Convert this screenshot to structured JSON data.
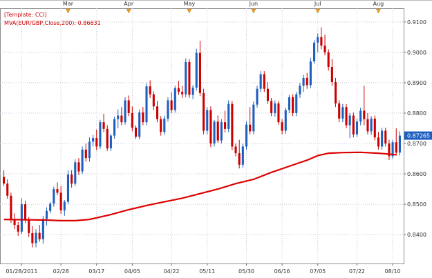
{
  "chart_data": {
    "type": "candlestick",
    "symbol": "EUR/GBP",
    "legend": {
      "template": "[Template: CCI]",
      "indicator": "MVA(EUR/GBP,Close,200): 0.86631"
    },
    "price_tag": "0.87265",
    "ylim": [
      0.8305,
      0.9145
    ],
    "y_ticks": [
      {
        "v": 0.91,
        "label": "0.9100"
      },
      {
        "v": 0.9,
        "label": "0.9000"
      },
      {
        "v": 0.89,
        "label": "0.8900"
      },
      {
        "v": 0.88,
        "label": "0.8800"
      },
      {
        "v": 0.87,
        "label": "0.8700"
      },
      {
        "v": 0.86,
        "label": "0.8600"
      },
      {
        "v": 0.85,
        "label": "0.8500"
      },
      {
        "v": 0.84,
        "label": "0.8400"
      }
    ],
    "x_ticks": [
      {
        "i": 5,
        "label": "01/28/2011"
      },
      {
        "i": 16,
        "label": "02/28"
      },
      {
        "i": 26,
        "label": "03/17"
      },
      {
        "i": 36,
        "label": "04/05"
      },
      {
        "i": 47,
        "label": "04/22"
      },
      {
        "i": 57,
        "label": "05/11"
      },
      {
        "i": 68,
        "label": "05/30"
      },
      {
        "i": 78,
        "label": "06/16"
      },
      {
        "i": 88,
        "label": "07/05"
      },
      {
        "i": 99,
        "label": "07/22"
      },
      {
        "i": 109,
        "label": "08/10"
      }
    ],
    "months": [
      {
        "i": 18,
        "label": "Mar"
      },
      {
        "i": 35,
        "label": "Apr"
      },
      {
        "i": 52,
        "label": "May"
      },
      {
        "i": 70,
        "label": "Jun"
      },
      {
        "i": 88,
        "label": "Jul"
      },
      {
        "i": 105,
        "label": "Aug"
      }
    ],
    "colors": {
      "up": "#1f5fbf",
      "down": "#cc0000",
      "mva": "#dd0000",
      "grid": "#c8c8d8"
    },
    "candles": [
      [
        0.859,
        0.8612,
        0.856,
        0.8568
      ],
      [
        0.8568,
        0.8582,
        0.8518,
        0.8528
      ],
      [
        0.8528,
        0.8538,
        0.8438,
        0.845
      ],
      [
        0.845,
        0.847,
        0.8418,
        0.8432
      ],
      [
        0.8432,
        0.8442,
        0.8396,
        0.841
      ],
      [
        0.841,
        0.852,
        0.8402,
        0.85
      ],
      [
        0.85,
        0.8512,
        0.8438,
        0.8448
      ],
      [
        0.8448,
        0.8458,
        0.8392,
        0.8405
      ],
      [
        0.8405,
        0.8428,
        0.8358,
        0.8372
      ],
      [
        0.8372,
        0.8418,
        0.8358,
        0.8406
      ],
      [
        0.8406,
        0.8432,
        0.8376,
        0.8385
      ],
      [
        0.8385,
        0.8462,
        0.837,
        0.8452
      ],
      [
        0.8452,
        0.849,
        0.843,
        0.8478
      ],
      [
        0.8478,
        0.8508,
        0.847,
        0.8502
      ],
      [
        0.8502,
        0.8558,
        0.8492,
        0.855
      ],
      [
        0.855,
        0.8572,
        0.853,
        0.8538
      ],
      [
        0.8538,
        0.856,
        0.8468,
        0.848
      ],
      [
        0.848,
        0.8514,
        0.8462,
        0.8508
      ],
      [
        0.8508,
        0.8612,
        0.85,
        0.8598
      ],
      [
        0.8598,
        0.8612,
        0.8555,
        0.8568
      ],
      [
        0.8568,
        0.8648,
        0.856,
        0.8638
      ],
      [
        0.8638,
        0.8652,
        0.8596,
        0.8608
      ],
      [
        0.8608,
        0.869,
        0.86,
        0.868
      ],
      [
        0.868,
        0.87,
        0.864,
        0.8652
      ],
      [
        0.8652,
        0.872,
        0.864,
        0.8706
      ],
      [
        0.8706,
        0.8728,
        0.869,
        0.8718
      ],
      [
        0.8718,
        0.8746,
        0.8678,
        0.869
      ],
      [
        0.869,
        0.8778,
        0.8682,
        0.877
      ],
      [
        0.877,
        0.8798,
        0.8738,
        0.8748
      ],
      [
        0.8748,
        0.876,
        0.8676,
        0.8684
      ],
      [
        0.8684,
        0.8732,
        0.8675,
        0.8726
      ],
      [
        0.8726,
        0.8788,
        0.8716,
        0.878
      ],
      [
        0.878,
        0.8812,
        0.875,
        0.8792
      ],
      [
        0.8792,
        0.882,
        0.876,
        0.877
      ],
      [
        0.877,
        0.8852,
        0.8762,
        0.8842
      ],
      [
        0.8842,
        0.8858,
        0.879,
        0.88
      ],
      [
        0.88,
        0.8822,
        0.874,
        0.8752
      ],
      [
        0.8752,
        0.876,
        0.8715,
        0.8722
      ],
      [
        0.8722,
        0.8812,
        0.8714,
        0.8802
      ],
      [
        0.8802,
        0.882,
        0.876,
        0.877
      ],
      [
        0.877,
        0.8898,
        0.876,
        0.8888
      ],
      [
        0.8888,
        0.8908,
        0.885,
        0.8862
      ],
      [
        0.8862,
        0.8872,
        0.881,
        0.8822
      ],
      [
        0.8822,
        0.884,
        0.877,
        0.878
      ],
      [
        0.878,
        0.879,
        0.8726,
        0.8738
      ],
      [
        0.8738,
        0.8792,
        0.8728,
        0.8782
      ],
      [
        0.8782,
        0.8852,
        0.8772,
        0.8842
      ],
      [
        0.8842,
        0.8868,
        0.88,
        0.881
      ],
      [
        0.881,
        0.889,
        0.8802,
        0.8882
      ],
      [
        0.8882,
        0.8906,
        0.886,
        0.887
      ],
      [
        0.887,
        0.889,
        0.885,
        0.8862
      ],
      [
        0.8862,
        0.898,
        0.8852,
        0.8968
      ],
      [
        0.8968,
        0.8978,
        0.885,
        0.886
      ],
      [
        0.886,
        0.8892,
        0.8846,
        0.8884
      ],
      [
        0.8884,
        0.9012,
        0.8874,
        0.8998
      ],
      [
        0.8998,
        0.9038,
        0.8856,
        0.8866
      ],
      [
        0.8866,
        0.888,
        0.873,
        0.8742
      ],
      [
        0.8742,
        0.882,
        0.873,
        0.881
      ],
      [
        0.881,
        0.8822,
        0.8688,
        0.87
      ],
      [
        0.87,
        0.8778,
        0.869,
        0.8772
      ],
      [
        0.8772,
        0.8792,
        0.8702,
        0.871
      ],
      [
        0.871,
        0.878,
        0.87,
        0.877
      ],
      [
        0.877,
        0.8808,
        0.8736,
        0.8748
      ],
      [
        0.8748,
        0.8842,
        0.8738,
        0.883
      ],
      [
        0.883,
        0.884,
        0.8678,
        0.869
      ],
      [
        0.869,
        0.87,
        0.8658,
        0.8668
      ],
      [
        0.8668,
        0.8712,
        0.8618,
        0.863
      ],
      [
        0.863,
        0.87,
        0.862,
        0.869
      ],
      [
        0.869,
        0.8772,
        0.868,
        0.8762
      ],
      [
        0.8762,
        0.882,
        0.873,
        0.874
      ],
      [
        0.874,
        0.8838,
        0.873,
        0.8828
      ],
      [
        0.8828,
        0.889,
        0.8818,
        0.888
      ],
      [
        0.888,
        0.8938,
        0.887,
        0.8928
      ],
      [
        0.8928,
        0.8938,
        0.887,
        0.888
      ],
      [
        0.888,
        0.8902,
        0.883,
        0.884
      ],
      [
        0.884,
        0.885,
        0.879,
        0.88
      ],
      [
        0.88,
        0.8842,
        0.8788,
        0.8832
      ],
      [
        0.8832,
        0.884,
        0.8762,
        0.877
      ],
      [
        0.877,
        0.878,
        0.873,
        0.8742
      ],
      [
        0.8742,
        0.8818,
        0.8732,
        0.881
      ],
      [
        0.881,
        0.886,
        0.88,
        0.8852
      ],
      [
        0.8852,
        0.8862,
        0.879,
        0.88
      ],
      [
        0.88,
        0.887,
        0.879,
        0.8862
      ],
      [
        0.8862,
        0.89,
        0.885,
        0.889
      ],
      [
        0.889,
        0.8926,
        0.887,
        0.8916
      ],
      [
        0.8916,
        0.8932,
        0.888,
        0.8892
      ],
      [
        0.8892,
        0.8982,
        0.8882,
        0.897
      ],
      [
        0.897,
        0.904,
        0.8962,
        0.9032
      ],
      [
        0.9032,
        0.9062,
        0.9,
        0.905
      ],
      [
        0.905,
        0.9082,
        0.901,
        0.9022
      ],
      [
        0.9022,
        0.9058,
        0.899,
        0.9
      ],
      [
        0.9,
        0.901,
        0.894,
        0.8952
      ],
      [
        0.8952,
        0.8978,
        0.889,
        0.8902
      ],
      [
        0.8902,
        0.8916,
        0.882,
        0.8832
      ],
      [
        0.8832,
        0.8842,
        0.877,
        0.8782
      ],
      [
        0.8782,
        0.883,
        0.877,
        0.882
      ],
      [
        0.882,
        0.883,
        0.875,
        0.876
      ],
      [
        0.876,
        0.88,
        0.8718,
        0.8792
      ],
      [
        0.8792,
        0.8802,
        0.872,
        0.873
      ],
      [
        0.873,
        0.8782,
        0.8722,
        0.8772
      ],
      [
        0.8772,
        0.8818,
        0.876,
        0.8808
      ],
      [
        0.8808,
        0.889,
        0.876,
        0.878
      ],
      [
        0.878,
        0.88,
        0.873,
        0.874
      ],
      [
        0.874,
        0.879,
        0.8728,
        0.8782
      ],
      [
        0.8782,
        0.8792,
        0.871,
        0.872
      ],
      [
        0.872,
        0.8738,
        0.868,
        0.869
      ],
      [
        0.869,
        0.8752,
        0.868,
        0.8742
      ],
      [
        0.8742,
        0.8752,
        0.869,
        0.87
      ],
      [
        0.87,
        0.8712,
        0.8646,
        0.8658
      ],
      [
        0.8658,
        0.8712,
        0.865,
        0.8704
      ],
      [
        0.8704,
        0.875,
        0.866,
        0.867
      ],
      [
        0.867,
        0.874,
        0.866,
        0.8726
      ]
    ],
    "mva": [
      [
        0,
        0.845
      ],
      [
        12,
        0.8448
      ],
      [
        16,
        0.8446
      ],
      [
        20,
        0.8446
      ],
      [
        24,
        0.845
      ],
      [
        30,
        0.8466
      ],
      [
        35,
        0.8482
      ],
      [
        40,
        0.8496
      ],
      [
        45,
        0.8508
      ],
      [
        50,
        0.852
      ],
      [
        55,
        0.8535
      ],
      [
        60,
        0.855
      ],
      [
        65,
        0.8568
      ],
      [
        70,
        0.8582
      ],
      [
        75,
        0.8605
      ],
      [
        80,
        0.8625
      ],
      [
        85,
        0.8645
      ],
      [
        88,
        0.866
      ],
      [
        91,
        0.8668
      ],
      [
        95,
        0.867
      ],
      [
        100,
        0.8671
      ],
      [
        105,
        0.8668
      ],
      [
        110,
        0.8663
      ]
    ]
  }
}
